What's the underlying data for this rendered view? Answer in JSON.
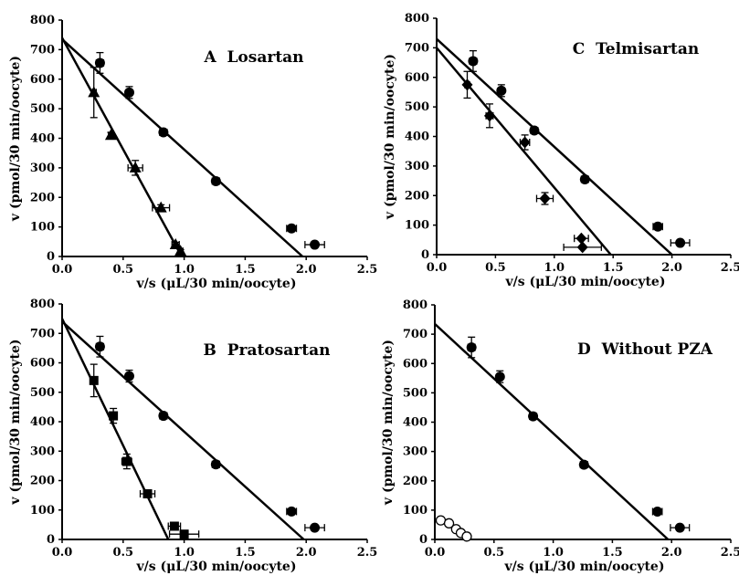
{
  "chart_data": [
    {
      "type": "scatter",
      "panel": "A",
      "title": "A  Losartan",
      "xlabel": "v/s (μL/30 min/oocyte)",
      "ylabel": "v (pmol/30 min/oocyte)",
      "xlim": [
        0,
        2.5
      ],
      "ylim": [
        0,
        800
      ],
      "xticks": [
        "0.0",
        "0.5",
        "1.0",
        "1.5",
        "2.0",
        "2.5"
      ],
      "yticks": [
        "0",
        "100",
        "200",
        "300",
        "400",
        "500",
        "600",
        "700",
        "800"
      ],
      "series": [
        {
          "marker": "circle",
          "points": [
            {
              "x": 0.31,
              "y": 655,
              "yerr": 35,
              "xerr": 0.03
            },
            {
              "x": 0.55,
              "y": 555,
              "yerr": 20,
              "xerr": 0.02
            },
            {
              "x": 0.83,
              "y": 420,
              "yerr": 10,
              "xerr": 0.03
            },
            {
              "x": 1.26,
              "y": 255,
              "yerr": 10,
              "xerr": 0.03
            },
            {
              "x": 1.88,
              "y": 95,
              "yerr": 8,
              "xerr": 0.04
            },
            {
              "x": 2.07,
              "y": 40,
              "yerr": 5,
              "xerr": 0.08
            }
          ],
          "fit": {
            "x0": 0,
            "y0": 735,
            "x1": 1.97,
            "y1": 0
          }
        },
        {
          "marker": "triangle",
          "points": [
            {
              "x": 0.26,
              "y": 555,
              "yerr": 85,
              "xerr": 0.02
            },
            {
              "x": 0.4,
              "y": 410,
              "yerr": 10,
              "xerr": 0.02
            },
            {
              "x": 0.6,
              "y": 300,
              "yerr": 25,
              "xerr": 0.06
            },
            {
              "x": 0.81,
              "y": 165,
              "yerr": 10,
              "xerr": 0.07
            },
            {
              "x": 0.93,
              "y": 40,
              "yerr": 8,
              "xerr": 0.03
            },
            {
              "x": 0.97,
              "y": 18,
              "yerr": 5,
              "xerr": 0.02
            }
          ],
          "fit": {
            "x0": 0,
            "y0": 740,
            "x1": 0.98,
            "y1": 0
          }
        }
      ]
    },
    {
      "type": "scatter",
      "panel": "B",
      "title": "B  Pratosartan",
      "xlabel": "v/s (μL/30 min/oocyte)",
      "ylabel": "v (pmol/30 min/oocyte)",
      "xlim": [
        0,
        2.5
      ],
      "ylim": [
        0,
        800
      ],
      "xticks": [
        "0.0",
        "0.5",
        "1.0",
        "1.5",
        "2.0",
        "2.5"
      ],
      "yticks": [
        "0",
        "100",
        "200",
        "300",
        "400",
        "500",
        "600",
        "700",
        "800"
      ],
      "series": [
        {
          "marker": "circle",
          "points": [
            {
              "x": 0.31,
              "y": 655,
              "yerr": 35,
              "xerr": 0.03
            },
            {
              "x": 0.55,
              "y": 555,
              "yerr": 20,
              "xerr": 0.02
            },
            {
              "x": 0.83,
              "y": 420,
              "yerr": 10,
              "xerr": 0.03
            },
            {
              "x": 1.26,
              "y": 255,
              "yerr": 10,
              "xerr": 0.03
            },
            {
              "x": 1.88,
              "y": 95,
              "yerr": 8,
              "xerr": 0.04
            },
            {
              "x": 2.07,
              "y": 40,
              "yerr": 5,
              "xerr": 0.08
            }
          ],
          "fit": {
            "x0": 0,
            "y0": 740,
            "x1": 1.98,
            "y1": 0
          }
        },
        {
          "marker": "square",
          "points": [
            {
              "x": 0.26,
              "y": 540,
              "yerr": 55,
              "xerr": 0.02
            },
            {
              "x": 0.42,
              "y": 420,
              "yerr": 25,
              "xerr": 0.02
            },
            {
              "x": 0.53,
              "y": 265,
              "yerr": 25,
              "xerr": 0.04
            },
            {
              "x": 0.7,
              "y": 155,
              "yerr": 10,
              "xerr": 0.06
            },
            {
              "x": 0.92,
              "y": 45,
              "yerr": 5,
              "xerr": 0.05
            },
            {
              "x": 1.0,
              "y": 18,
              "yerr": 5,
              "xerr": 0.12
            }
          ],
          "fit": {
            "x0": 0,
            "y0": 750,
            "x1": 0.87,
            "y1": 0
          }
        }
      ]
    },
    {
      "type": "scatter",
      "panel": "C",
      "title": "C  Telmisartan",
      "xlabel": "v/s (μL/30 min/oocyte)",
      "ylabel": "v (pmol/30 min/oocyte)",
      "xlim": [
        0,
        2.5
      ],
      "ylim": [
        0,
        800
      ],
      "xticks": [
        "0.0",
        "0.5",
        "1.0",
        "1.5",
        "2.0",
        "2.5"
      ],
      "yticks": [
        "0",
        "100",
        "200",
        "300",
        "400",
        "500",
        "600",
        "700",
        "800"
      ],
      "series": [
        {
          "marker": "circle",
          "points": [
            {
              "x": 0.31,
              "y": 655,
              "yerr": 35,
              "xerr": 0.03
            },
            {
              "x": 0.55,
              "y": 555,
              "yerr": 20,
              "xerr": 0.02
            },
            {
              "x": 0.83,
              "y": 420,
              "yerr": 10,
              "xerr": 0.03
            },
            {
              "x": 1.26,
              "y": 255,
              "yerr": 10,
              "xerr": 0.03
            },
            {
              "x": 1.88,
              "y": 95,
              "yerr": 8,
              "xerr": 0.04
            },
            {
              "x": 2.07,
              "y": 40,
              "yerr": 5,
              "xerr": 0.08
            }
          ],
          "fit": {
            "x0": 0,
            "y0": 730,
            "x1": 2.0,
            "y1": 0
          }
        },
        {
          "marker": "diamond",
          "points": [
            {
              "x": 0.26,
              "y": 575,
              "yerr": 45,
              "xerr": 0.02
            },
            {
              "x": 0.45,
              "y": 470,
              "yerr": 40,
              "xerr": 0.03
            },
            {
              "x": 0.75,
              "y": 380,
              "yerr": 25,
              "xerr": 0.04
            },
            {
              "x": 0.92,
              "y": 190,
              "yerr": 20,
              "xerr": 0.07
            },
            {
              "x": 1.23,
              "y": 55,
              "yerr": 5,
              "xerr": 0.06
            },
            {
              "x": 1.24,
              "y": 25,
              "yerr": 5,
              "xerr": 0.16
            }
          ],
          "fit": {
            "x0": 0,
            "y0": 700,
            "x1": 1.48,
            "y1": 0
          }
        }
      ]
    },
    {
      "type": "scatter",
      "panel": "D",
      "title": "D  Without PZA",
      "xlabel": "v/s (μL/30 min/oocyte)",
      "ylabel": "v (pmol/30 min/oocyte)",
      "xlim": [
        0,
        2.5
      ],
      "ylim": [
        0,
        800
      ],
      "xticks": [
        "0.0",
        "0.5",
        "1.0",
        "1.5",
        "2.0",
        "2.5"
      ],
      "yticks": [
        "0",
        "100",
        "200",
        "300",
        "400",
        "500",
        "600",
        "700",
        "800"
      ],
      "series": [
        {
          "marker": "circle",
          "points": [
            {
              "x": 0.31,
              "y": 655,
              "yerr": 35,
              "xerr": 0.03
            },
            {
              "x": 0.55,
              "y": 555,
              "yerr": 20,
              "xerr": 0.02
            },
            {
              "x": 0.83,
              "y": 420,
              "yerr": 10,
              "xerr": 0.03
            },
            {
              "x": 1.26,
              "y": 255,
              "yerr": 10,
              "xerr": 0.03
            },
            {
              "x": 1.88,
              "y": 95,
              "yerr": 8,
              "xerr": 0.04
            },
            {
              "x": 2.07,
              "y": 40,
              "yerr": 5,
              "xerr": 0.08
            }
          ],
          "fit": {
            "x0": 0,
            "y0": 735,
            "x1": 1.97,
            "y1": 0
          }
        },
        {
          "marker": "open-circle",
          "points": [
            {
              "x": 0.05,
              "y": 65,
              "yerr": 5,
              "xerr": 0.01
            },
            {
              "x": 0.12,
              "y": 55,
              "yerr": 5,
              "xerr": 0.01
            },
            {
              "x": 0.18,
              "y": 35,
              "yerr": 4,
              "xerr": 0.01
            },
            {
              "x": 0.22,
              "y": 22,
              "yerr": 4,
              "xerr": 0.01
            },
            {
              "x": 0.27,
              "y": 10,
              "yerr": 3,
              "xerr": 0.01
            }
          ]
        }
      ]
    }
  ]
}
